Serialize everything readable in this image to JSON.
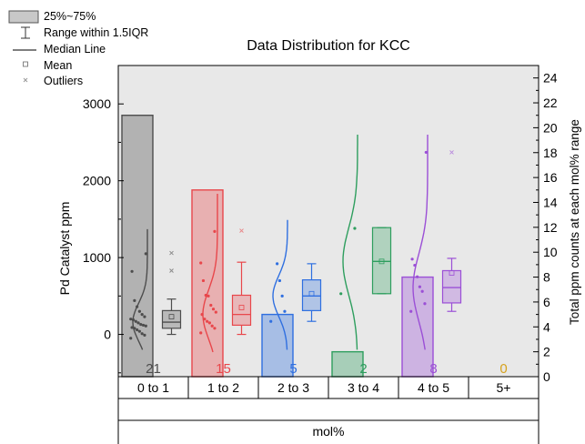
{
  "chart_data": {
    "type": "box",
    "title": "Data Distribution for KCC",
    "xlabel": "mol%",
    "ylabel": "Pd Catalyst ppm",
    "y2label": "Total ppm counts at each mol% range",
    "ylim": [
      -550,
      3500
    ],
    "y2lim": [
      0,
      25
    ],
    "yticks": [
      0,
      1000,
      2000,
      3000
    ],
    "y2ticks": [
      0,
      2,
      4,
      6,
      8,
      10,
      12,
      14,
      16,
      18,
      20,
      22,
      24
    ],
    "categories": [
      "0 to 1",
      "1 to 2",
      "2 to 3",
      "3 to 4",
      "4 to 5",
      "5+"
    ],
    "legend": {
      "placement": "top-left",
      "items": [
        "25%~75%",
        "Range within 1.5IQR",
        "Median Line",
        "Mean",
        "Outliers"
      ]
    },
    "grid": false,
    "groups": [
      {
        "category": "0 to 1",
        "color": "#4d4d4d",
        "count": 21,
        "box": {
          "q1": 80,
          "median": 160,
          "q3": 310,
          "mean": 230,
          "whisker_low": 0,
          "whisker_high": 460
        },
        "outliers": [
          830,
          1060
        ],
        "points": [
          -50,
          -10,
          10,
          40,
          60,
          80,
          90,
          110,
          120,
          130,
          150,
          170,
          190,
          200,
          230,
          260,
          300,
          360,
          440,
          820,
          1050
        ],
        "curve_top": 1370,
        "curve_bottom": -200
      },
      {
        "category": "1 to 2",
        "color": "#e8474b",
        "count": 15,
        "box": {
          "q1": 120,
          "median": 260,
          "q3": 510,
          "mean": 350,
          "whisker_low": 0,
          "whisker_high": 940
        },
        "outliers": [
          1350
        ],
        "points": [
          20,
          80,
          110,
          150,
          170,
          200,
          260,
          290,
          330,
          380,
          500,
          510,
          700,
          930,
          1340
        ],
        "curve_top": 1830,
        "curve_bottom": -230
      },
      {
        "category": "2 to 3",
        "color": "#2f6fe0",
        "count": 5,
        "box": {
          "q1": 310,
          "median": 500,
          "q3": 710,
          "mean": 530,
          "whisker_low": 170,
          "whisker_high": 920
        },
        "outliers": [],
        "points": [
          170,
          300,
          500,
          700,
          920
        ],
        "curve_top": 1490,
        "curve_bottom": -200
      },
      {
        "category": "3 to 4",
        "color": "#2e9e5e",
        "count": 2,
        "box": {
          "q1": 530,
          "median": 950,
          "q3": 1390,
          "mean": 950,
          "whisker_low": 530,
          "whisker_high": 1390
        },
        "outliers": [],
        "points": [
          530,
          1380
        ],
        "curve_top": 2600,
        "curve_bottom": -200
      },
      {
        "category": "4 to 5",
        "color": "#9b4fd6",
        "count": 8,
        "box": {
          "q1": 410,
          "median": 610,
          "q3": 830,
          "mean": 800,
          "whisker_low": 300,
          "whisker_high": 990
        },
        "outliers": [
          2370
        ],
        "points": [
          300,
          400,
          560,
          620,
          750,
          900,
          980,
          2370
        ],
        "curve_top": 2600,
        "curve_bottom": -200
      },
      {
        "category": "5+",
        "color": "#d6a21e",
        "count": 0,
        "box": null,
        "outliers": [],
        "points": [],
        "curve_top": null,
        "curve_bottom": null
      }
    ]
  }
}
